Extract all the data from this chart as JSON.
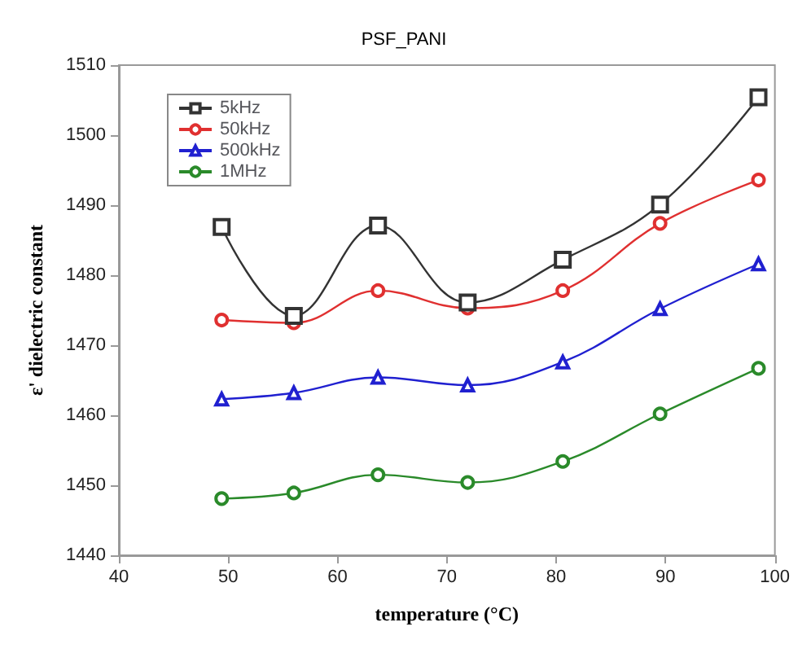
{
  "chart_data": {
    "type": "line",
    "title": "PSF_PANI",
    "xlabel": "temperature (°C)",
    "ylabel": "ε' dielectric constant",
    "x": [
      49.4,
      56,
      63.7,
      71.9,
      80.6,
      89.5,
      98.5
    ],
    "xlim": [
      40,
      100
    ],
    "xticks": [
      40,
      50,
      60,
      70,
      80,
      90,
      100
    ],
    "ylim": [
      1440,
      1510
    ],
    "yticks": [
      1440,
      1450,
      1460,
      1470,
      1480,
      1490,
      1500,
      1510
    ],
    "grid": false,
    "legend": "top left",
    "line_style": "solid",
    "series": [
      {
        "name": "5kHz",
        "color": "#333333",
        "marker": "square",
        "values": [
          1486.9,
          1474.2,
          1487.1,
          1476.1,
          1482.2,
          1490.1,
          1505.4
        ]
      },
      {
        "name": "50kHz",
        "color": "#e03030",
        "marker": "circle",
        "values": [
          1473.6,
          1473.2,
          1477.8,
          1475.3,
          1477.8,
          1487.4,
          1493.6
        ]
      },
      {
        "name": "500kHz",
        "color": "#2020d0",
        "marker": "triangle",
        "values": [
          1462.3,
          1463.2,
          1465.4,
          1464.3,
          1467.6,
          1475.2,
          1481.6
        ]
      },
      {
        "name": "1MHz",
        "color": "#2a8a2a",
        "marker": "circle",
        "values": [
          1448.1,
          1448.9,
          1451.5,
          1450.4,
          1453.4,
          1460.2,
          1466.7
        ]
      }
    ]
  }
}
